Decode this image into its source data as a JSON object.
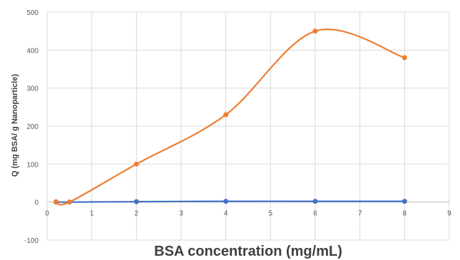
{
  "chart_data": {
    "type": "line",
    "smooth": true,
    "title": "",
    "xlabel": "BSA concentration (mg/mL)",
    "ylabel": "Q (mg BSA/ g Nanoparticle)",
    "xlim": [
      0,
      9
    ],
    "ylim": [
      -100,
      500
    ],
    "xticks": [
      "0",
      "1",
      "2",
      "3",
      "4",
      "5",
      "6",
      "7",
      "8",
      "9"
    ],
    "yticks": [
      "-100",
      "0",
      "100",
      "200",
      "300",
      "400",
      "500"
    ],
    "grid": true,
    "legend": "none",
    "series": [
      {
        "color": "#4472C4",
        "x": [
          0.2,
          0.5,
          2,
          4,
          6,
          8
        ],
        "y": [
          0,
          0,
          1,
          2,
          2,
          2
        ]
      },
      {
        "color": "#ED7D31",
        "x": [
          0.2,
          0.5,
          2,
          4,
          6,
          8
        ],
        "y": [
          1,
          0,
          100,
          230,
          450,
          380
        ]
      }
    ]
  }
}
